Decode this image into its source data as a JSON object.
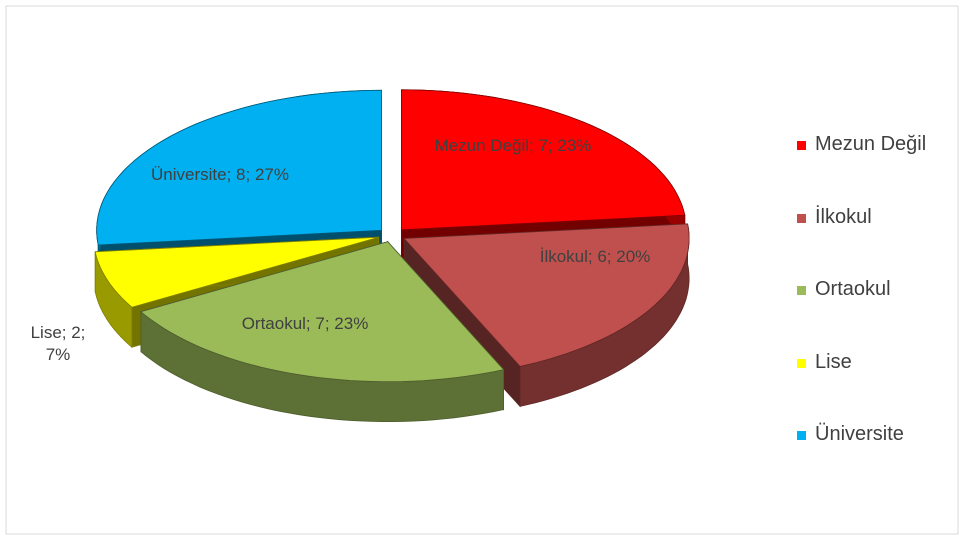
{
  "chart_data": {
    "type": "pie3d",
    "categories": [
      "Mezun Değil",
      "İlkokul",
      "Ortaokul",
      "Lise",
      "Üniversite"
    ],
    "values": [
      7,
      6,
      7,
      2,
      8
    ],
    "value_labels": [
      "Mezun Değil; 7; 23%",
      "İlkokul; 6; 20%",
      "Ortaokul; 7; 23%",
      "Lise; 2; 7%",
      "Üniversite; 8; 27%"
    ],
    "colors": [
      "#ff0000",
      "#c0504d",
      "#9bbb59",
      "#ffff00",
      "#00b0f0"
    ],
    "legend": "right"
  }
}
